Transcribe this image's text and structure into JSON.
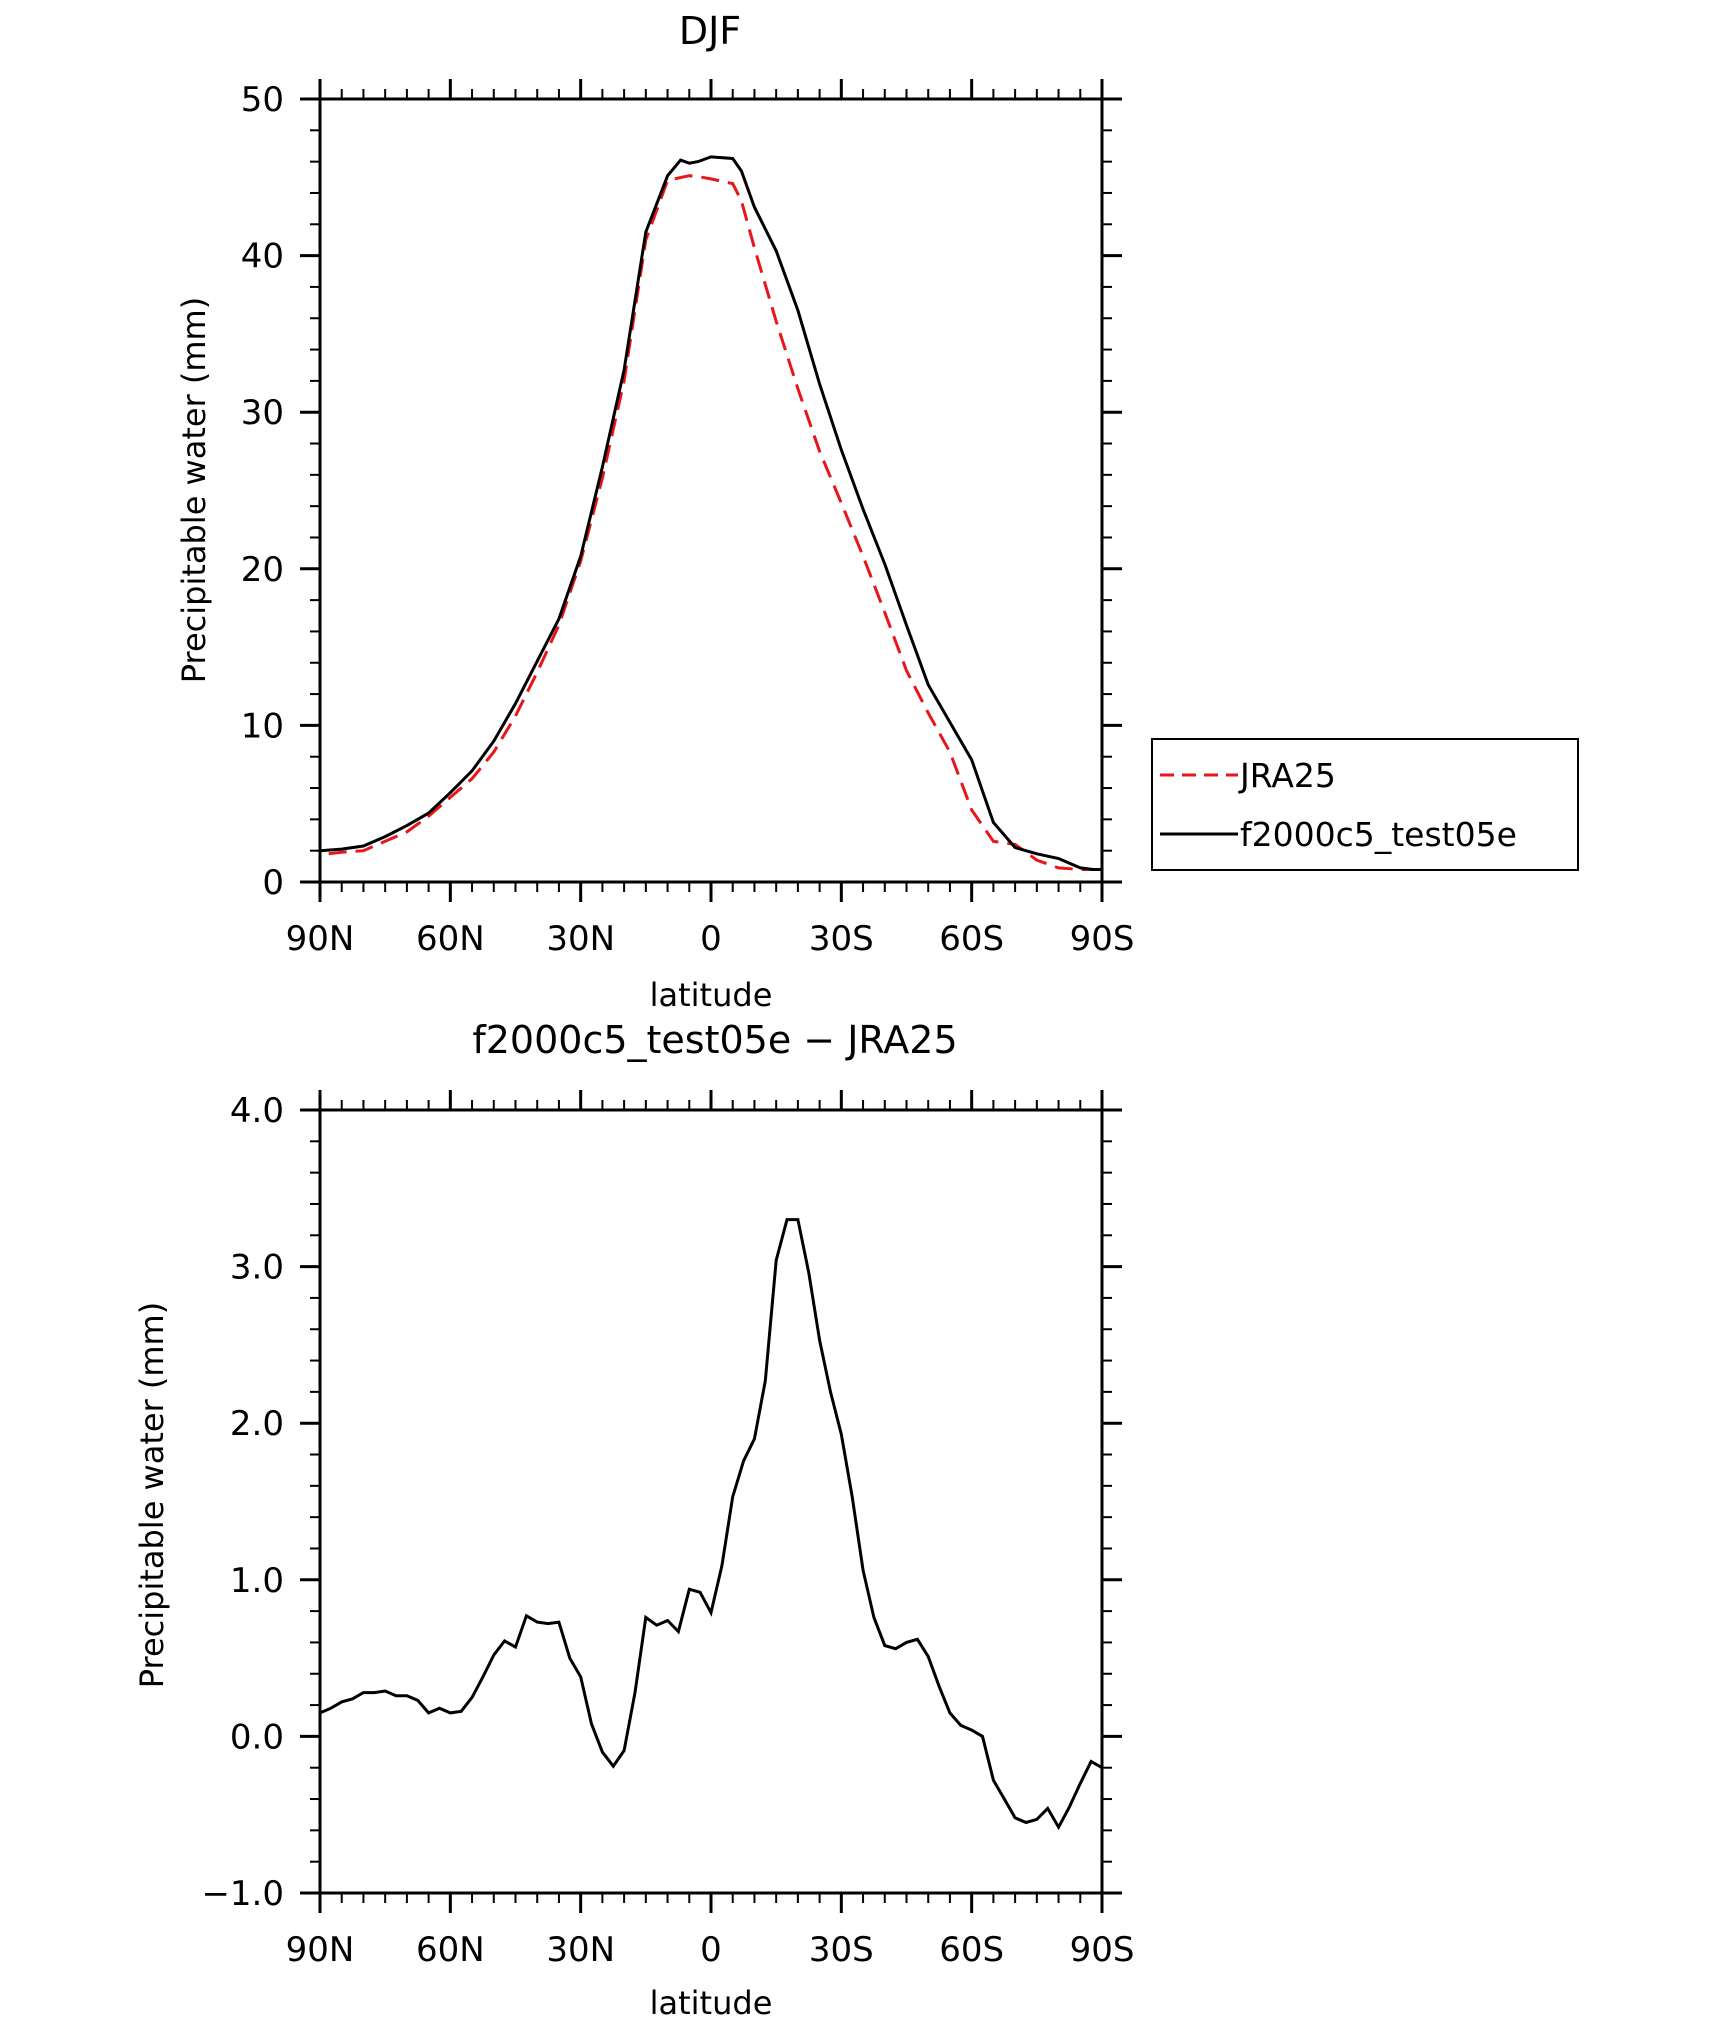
{
  "chart_data": [
    {
      "type": "line",
      "title": "DJF",
      "xlabel": "latitude",
      "ylabel": "Precipitable water (mm)",
      "xlim": [
        90,
        -90
      ],
      "ylim": [
        0,
        50
      ],
      "x_ticks": [
        90,
        60,
        30,
        0,
        -30,
        -60,
        -90
      ],
      "x_tick_labels": [
        "90N",
        "60N",
        "30N",
        "0",
        "30S",
        "60S",
        "90S"
      ],
      "y_ticks": [
        0,
        10,
        20,
        30,
        40,
        50
      ],
      "y_tick_labels": [
        "0",
        "10",
        "20",
        "30",
        "40",
        "50"
      ],
      "legend_position": "right",
      "series": [
        {
          "name": "JRA25",
          "color": "#e8161b",
          "style": "dashed",
          "x": [
            88,
            85,
            80,
            75,
            70,
            65,
            60,
            55,
            50,
            45,
            40,
            35,
            30,
            25,
            20,
            15,
            10,
            5,
            2,
            0,
            -5,
            -7,
            -10,
            -15,
            -20,
            -25,
            -30,
            -35,
            -40,
            -45,
            -50,
            -55,
            -60,
            -65,
            -70,
            -75,
            -80,
            -85,
            -88,
            -90
          ],
          "y": [
            1.8,
            1.9,
            2.0,
            2.6,
            3.2,
            4.2,
            5.4,
            6.6,
            8.3,
            10.6,
            13.4,
            16.4,
            20.5,
            25.8,
            32.0,
            41.0,
            44.8,
            45.1,
            45.0,
            44.9,
            44.6,
            43.5,
            40.5,
            35.8,
            31.5,
            27.5,
            24.2,
            20.8,
            17.2,
            13.5,
            10.8,
            8.3,
            4.6,
            2.6,
            2.4,
            1.4,
            0.9,
            0.8,
            0.8,
            0.8
          ]
        },
        {
          "name": "f2000c5_test05e",
          "color": "#000000",
          "style": "solid",
          "x": [
            90,
            85,
            80,
            75,
            70,
            65,
            60,
            55,
            50,
            45,
            40,
            35,
            30,
            25,
            20,
            15,
            10,
            7,
            5,
            3,
            0,
            -5,
            -7,
            -10,
            -15,
            -20,
            -25,
            -30,
            -35,
            -40,
            -45,
            -50,
            -55,
            -60,
            -65,
            -70,
            -75,
            -80,
            -85,
            -88,
            -90
          ],
          "y": [
            2.0,
            2.1,
            2.3,
            2.9,
            3.6,
            4.4,
            5.7,
            7.1,
            9.0,
            11.4,
            14.1,
            16.8,
            20.8,
            26.5,
            32.7,
            41.5,
            45.1,
            46.1,
            45.9,
            46.0,
            46.3,
            46.2,
            45.4,
            43.1,
            40.3,
            36.5,
            31.8,
            27.6,
            23.8,
            20.3,
            16.4,
            12.6,
            10.2,
            7.8,
            3.8,
            2.2,
            1.8,
            1.5,
            0.9,
            0.8,
            0.8
          ]
        }
      ]
    },
    {
      "type": "line",
      "title": "f2000c5_test05e − JRA25",
      "xlabel": "latitude",
      "ylabel": "Precipitable water (mm)",
      "xlim": [
        90,
        -90
      ],
      "ylim": [
        -1.0,
        4.0
      ],
      "x_ticks": [
        90,
        60,
        30,
        0,
        -30,
        -60,
        -90
      ],
      "x_tick_labels": [
        "90N",
        "60N",
        "30N",
        "0",
        "30S",
        "60S",
        "90S"
      ],
      "y_ticks": [
        -1,
        0,
        1,
        2,
        3,
        4
      ],
      "y_tick_labels": [
        "−1.0",
        "0.0",
        "1.0",
        "2.0",
        "3.0",
        "4.0"
      ],
      "series": [
        {
          "name": "f2000c5_test05e - JRA25",
          "color": "#000000",
          "style": "solid",
          "x": [
            90,
            87.5,
            85,
            82.5,
            80,
            77.5,
            75,
            72.5,
            70,
            67.5,
            65,
            62.5,
            60,
            57.5,
            55,
            52.5,
            50,
            47.5,
            45,
            42.5,
            40,
            37.5,
            35,
            32.5,
            30,
            27.5,
            25,
            22.5,
            20,
            17.5,
            15,
            12.5,
            10,
            7.5,
            5,
            2.5,
            0,
            -2.5,
            -5,
            -7.5,
            -10,
            -12.5,
            -15,
            -17.5,
            -20,
            -22.5,
            -25,
            -27.5,
            -30,
            -32.5,
            -35,
            -37.5,
            -40,
            -42.5,
            -45,
            -47.5,
            -50,
            -52.5,
            -55,
            -57.5,
            -60,
            -62.5,
            -65,
            -67.5,
            -70,
            -72.5,
            -75,
            -77.5,
            -80,
            -82.5,
            -85,
            -87.5,
            -90
          ],
          "y": [
            0.15,
            0.18,
            0.22,
            0.24,
            0.28,
            0.28,
            0.29,
            0.26,
            0.26,
            0.23,
            0.15,
            0.18,
            0.15,
            0.16,
            0.25,
            0.38,
            0.52,
            0.61,
            0.57,
            0.77,
            0.73,
            0.72,
            0.73,
            0.5,
            0.38,
            0.08,
            -0.1,
            -0.19,
            -0.09,
            0.28,
            0.76,
            0.71,
            0.74,
            0.67,
            0.94,
            0.92,
            0.79,
            1.09,
            1.53,
            1.76,
            1.9,
            2.27,
            3.04,
            3.3,
            3.3,
            2.96,
            2.53,
            2.2,
            1.93,
            1.53,
            1.06,
            0.76,
            0.58,
            0.56,
            0.6,
            0.62,
            0.51,
            0.32,
            0.15,
            0.07,
            0.04,
            0.0,
            -0.28,
            -0.4,
            -0.52,
            -0.55,
            -0.53,
            -0.46,
            -0.58,
            -0.45,
            -0.3,
            -0.16,
            -0.2
          ]
        }
      ]
    }
  ]
}
